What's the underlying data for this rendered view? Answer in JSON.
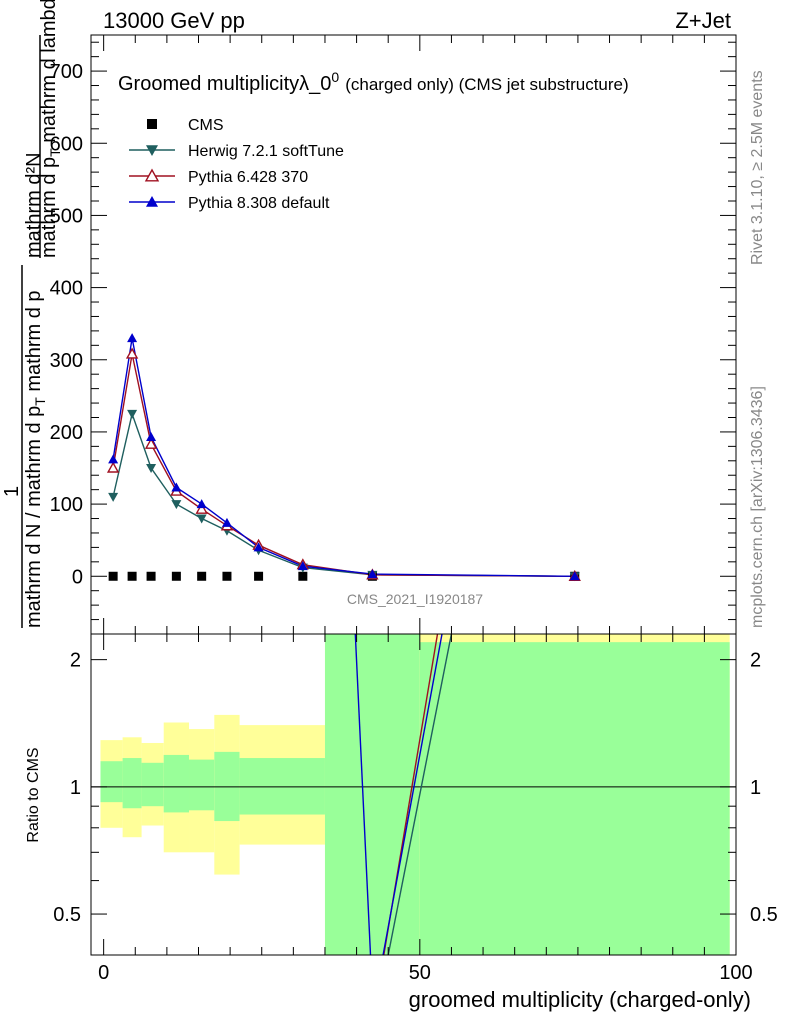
{
  "header": {
    "left": "13000 GeV pp",
    "right": "Z+Jet"
  },
  "side_labels": {
    "rivet": "Rivet 3.1.10, ≥ 2.5M events",
    "mcplots": "mcplots.cern.ch [arXiv:1306.3436]"
  },
  "watermark": "CMS_2021_I1920187",
  "chart_data": [
    {
      "type": "line",
      "title": "Groomed multiplicityλ_0",
      "title_sup": "0",
      "title_suffix": "(charged only) (CMS jet substructure)",
      "ylabel": "1 / (mathrm d N / mathrm d p_T mathrm d p_T) · mathrm d²N / (mathrm d p_T mathrm d lambda)",
      "ylabel_parts": {
        "num_top": "mathrm d²N",
        "den_top": "mathrm d p",
        "den_top_sub": "T",
        "den_top_suffix": " mathrm d lambda",
        "num_bottom": "1",
        "den_bottom": "mathrm d N / mathrm d p",
        "den_bottom_sub": "T",
        "den_bottom_suffix": " mathrm d p"
      },
      "xlim": [
        -2,
        100
      ],
      "ylim": [
        -80,
        750
      ],
      "yticks": [
        0,
        100,
        200,
        300,
        400,
        500,
        600,
        700
      ],
      "legend_position": "top-left",
      "series": [
        {
          "name": "CMS",
          "color": "#000000",
          "marker": "square",
          "x": [
            1.5,
            4.5,
            7.5,
            11.5,
            15.5,
            19.5,
            24.5,
            31.5,
            42.5,
            74.5
          ],
          "y": [
            0,
            0,
            0,
            0,
            0,
            0,
            0,
            0,
            0,
            0
          ]
        },
        {
          "name": "Herwig 7.2.1 softTune",
          "color": "#1f5f5f",
          "marker": "triangle-down",
          "x": [
            1.5,
            4.5,
            7.5,
            11.5,
            15.5,
            19.5,
            24.5,
            31.5,
            42.5,
            74.5
          ],
          "y": [
            110,
            225,
            150,
            100,
            80,
            63,
            36,
            12,
            2,
            0
          ]
        },
        {
          "name": "Pythia 6.428 370",
          "color": "#a01020",
          "marker": "triangle-up-open",
          "x": [
            1.5,
            4.5,
            7.5,
            11.5,
            15.5,
            19.5,
            24.5,
            31.5,
            42.5,
            74.5
          ],
          "y": [
            150,
            308,
            183,
            118,
            93,
            70,
            43,
            16,
            2,
            0
          ]
        },
        {
          "name": "Pythia 8.308 default",
          "color": "#0000cc",
          "marker": "triangle-up",
          "x": [
            1.5,
            4.5,
            7.5,
            11.5,
            15.5,
            19.5,
            24.5,
            31.5,
            42.5,
            74.5
          ],
          "y": [
            162,
            330,
            193,
            123,
            100,
            74,
            40,
            14,
            3,
            0
          ]
        }
      ]
    },
    {
      "type": "line",
      "ylabel": "Ratio to CMS",
      "xlabel": "groomed multiplicity (charged-only)",
      "xlim": [
        -2,
        100
      ],
      "ylim": [
        0.4,
        2.3
      ],
      "yticks": [
        0.5,
        1,
        2
      ],
      "ytick_labels": [
        "0.5",
        "1",
        "2"
      ],
      "xticks": [
        0,
        50,
        100
      ],
      "xtick_labels": [
        "0",
        "50",
        "100"
      ],
      "bands": [
        {
          "x0": -0.5,
          "x1": 3,
          "g_lo": 0.92,
          "g_hi": 1.15,
          "y_lo": 0.8,
          "y_hi": 1.29
        },
        {
          "x0": 3,
          "x1": 6,
          "g_lo": 0.89,
          "g_hi": 1.17,
          "y_lo": 0.76,
          "y_hi": 1.31
        },
        {
          "x0": 6,
          "x1": 9.5,
          "g_lo": 0.9,
          "g_hi": 1.14,
          "y_lo": 0.81,
          "y_hi": 1.27
        },
        {
          "x0": 9.5,
          "x1": 13.5,
          "g_lo": 0.87,
          "g_hi": 1.19,
          "y_lo": 0.7,
          "y_hi": 1.42
        },
        {
          "x0": 13.5,
          "x1": 17.5,
          "g_lo": 0.88,
          "g_hi": 1.16,
          "y_lo": 0.7,
          "y_hi": 1.37
        },
        {
          "x0": 17.5,
          "x1": 21.5,
          "g_lo": 0.83,
          "g_hi": 1.21,
          "y_lo": 0.62,
          "y_hi": 1.48
        },
        {
          "x0": 21.5,
          "x1": 35,
          "g_lo": 0.86,
          "g_hi": 1.17,
          "y_lo": 0.73,
          "y_hi": 1.4
        },
        {
          "x0": 35,
          "x1": 50,
          "g_lo": 0.4,
          "g_hi": 2.3,
          "y_lo": 0.4,
          "y_hi": 2.3
        },
        {
          "x0": 50,
          "x1": 99,
          "g_lo": 0.4,
          "g_hi": 2.2,
          "y_lo": 0.4,
          "y_hi": 2.3
        }
      ],
      "ratio_lines": [
        {
          "name": "Pythia 8.308 default",
          "color": "#0000cc",
          "x": [
            39.8,
            42.2
          ],
          "y": [
            2.3,
            0.4
          ]
        },
        {
          "name": "Pythia 6.428 370",
          "color": "#a01020",
          "x": [
            44.3,
            52.8
          ],
          "y": [
            0.4,
            2.3
          ]
        },
        {
          "name": "Pythia 8.308 default",
          "color": "#0000cc",
          "x": [
            44.2,
            53.5
          ],
          "y": [
            0.4,
            2.3
          ]
        },
        {
          "name": "Herwig 7.2.1 softTune",
          "color": "#1f5f5f",
          "x": [
            45.0,
            55.0
          ],
          "y": [
            0.4,
            2.3
          ]
        }
      ]
    }
  ]
}
